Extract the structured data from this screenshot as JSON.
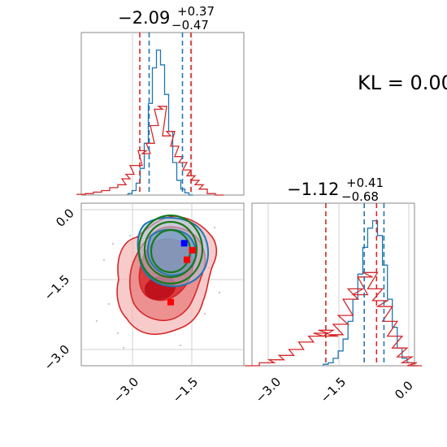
{
  "chart_data": [
    {
      "type": "histogram",
      "panel": "top-left",
      "title_main": "−2.09",
      "title_plus": "+0.37",
      "title_minus": "−0.47",
      "xlim": [
        -4.0,
        0.0
      ],
      "grid": true,
      "series": [
        {
          "name": "",
          "color": "#1f77b4",
          "x": [
            -2.8,
            -2.7,
            -2.6,
            -2.5,
            -2.4,
            -2.3,
            -2.2,
            -2.1,
            -2.0,
            -1.9,
            -1.8,
            -1.7,
            -1.6,
            -1.5,
            -1.4,
            -1.3
          ],
          "values": [
            0.01,
            0.03,
            0.08,
            0.18,
            0.35,
            0.62,
            0.86,
            0.98,
            0.88,
            0.68,
            0.43,
            0.22,
            0.1,
            0.04,
            0.015,
            0.0
          ],
          "quantiles": [
            -2.33,
            -1.51
          ]
        },
        {
          "name": "",
          "color": "#d62728",
          "x": [
            -4.0,
            -3.8,
            -3.6,
            -3.4,
            -3.2,
            -3.0,
            -2.9,
            -2.8,
            -2.7,
            -2.6,
            -2.5,
            -2.4,
            -2.3,
            -2.2,
            -2.1,
            -2.0,
            -1.9,
            -1.8,
            -1.7,
            -1.6,
            -1.5,
            -1.4,
            -1.3,
            -1.2,
            -1.1,
            -1.0,
            -0.8,
            -0.6
          ],
          "values": [
            0.005,
            0.01,
            0.02,
            0.03,
            0.05,
            0.07,
            0.11,
            0.14,
            0.2,
            0.2,
            0.3,
            0.28,
            0.35,
            0.47,
            0.58,
            0.6,
            0.4,
            0.43,
            0.33,
            0.26,
            0.22,
            0.17,
            0.13,
            0.1,
            0.07,
            0.04,
            0.01,
            0.0
          ],
          "quantiles": [
            -2.56,
            -1.3
          ]
        }
      ]
    },
    {
      "type": "contour",
      "panel": "bottom-left",
      "xlim": [
        -4.0,
        -1.0
      ],
      "ylim": [
        -3.3,
        0.15
      ],
      "x_ticks": [
        "−3.0",
        "−1.5"
      ],
      "x_tick_values": [
        -3.0,
        -1.5
      ],
      "y_ticks": [
        "0.0",
        "−1.5",
        "−3.0"
      ],
      "y_tick_values": [
        0.0,
        -1.5,
        -3.0
      ],
      "grid": true,
      "points": [
        {
          "color": "#0000ff",
          "x": -2.1,
          "y": -0.7
        },
        {
          "color": "#ff0000",
          "x": -1.95,
          "y": -0.85
        },
        {
          "color": "#ff0000",
          "x": -2.05,
          "y": -1.05
        },
        {
          "color": "#ff0000",
          "x": -2.35,
          "y": -1.95
        }
      ]
    },
    {
      "type": "histogram",
      "panel": "bottom-right",
      "title_main": "−1.12",
      "title_plus": "+0.41",
      "title_minus": "−0.68",
      "xlim": [
        -3.3,
        0.0
      ],
      "x_ticks": [
        "−3.0",
        "−1.5",
        "0.0"
      ],
      "x_tick_values": [
        -3.0,
        -1.5,
        0.0
      ],
      "grid": true,
      "series": [
        {
          "name": "",
          "color": "#1f77b4",
          "x": [
            -1.8,
            -1.7,
            -1.6,
            -1.5,
            -1.4,
            -1.3,
            -1.2,
            -1.1,
            -1.0,
            -0.9,
            -0.8,
            -0.7,
            -0.6,
            -0.5,
            -0.4,
            -0.3,
            -0.2,
            -0.1,
            0.0
          ],
          "values": [
            0.01,
            0.02,
            0.05,
            0.1,
            0.18,
            0.3,
            0.45,
            0.62,
            0.8,
            0.93,
            0.98,
            0.88,
            0.68,
            0.45,
            0.26,
            0.12,
            0.05,
            0.02,
            0.0
          ],
          "quantiles": [
            -1.02,
            -0.62
          ]
        },
        {
          "name": "",
          "color": "#d62728",
          "x": [
            -3.3,
            -3.0,
            -2.8,
            -2.6,
            -2.4,
            -2.2,
            -2.0,
            -1.9,
            -1.8,
            -1.7,
            -1.6,
            -1.5,
            -1.4,
            -1.3,
            -1.2,
            -1.1,
            -1.0,
            -0.9,
            -0.8,
            -0.7,
            -0.6,
            -0.5,
            -0.4,
            -0.3,
            -0.2,
            -0.1,
            0.0
          ],
          "values": [
            0.0,
            0.02,
            0.04,
            0.07,
            0.11,
            0.16,
            0.2,
            0.22,
            0.24,
            0.2,
            0.21,
            0.28,
            0.34,
            0.45,
            0.52,
            0.48,
            0.6,
            0.63,
            0.52,
            0.44,
            0.4,
            0.3,
            0.2,
            0.12,
            0.06,
            0.02,
            0.0
          ],
          "quantiles": [
            -1.8,
            -0.77
          ]
        }
      ]
    }
  ],
  "annotation": {
    "kl_text": "KL = 0.00"
  }
}
